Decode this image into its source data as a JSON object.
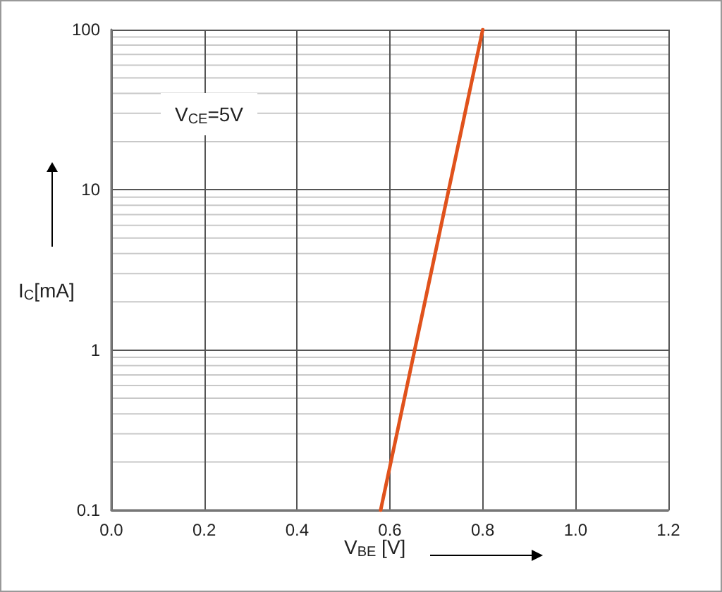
{
  "chart_data": {
    "type": "line",
    "xlabel": "V$_{BE}$ [V]",
    "ylabel": "I$_{C}$[mA]",
    "annotations": [
      "V$_{CE}$=5V"
    ],
    "x": [
      0.58,
      0.8
    ],
    "series": [
      {
        "color": "#e0521c",
        "values": [
          0.1,
          100
        ]
      }
    ],
    "xlim": [
      0,
      1.2
    ],
    "xticks": [
      "0.0",
      0.2,
      0.4,
      0.6,
      0.8,
      "1.0",
      1.2
    ],
    "ylim": [
      0.1,
      100
    ],
    "yticks": [
      0.1,
      1,
      10,
      100
    ],
    "log": "y",
    "grid": true,
    "marker": "none",
    "line_style": "solid"
  }
}
